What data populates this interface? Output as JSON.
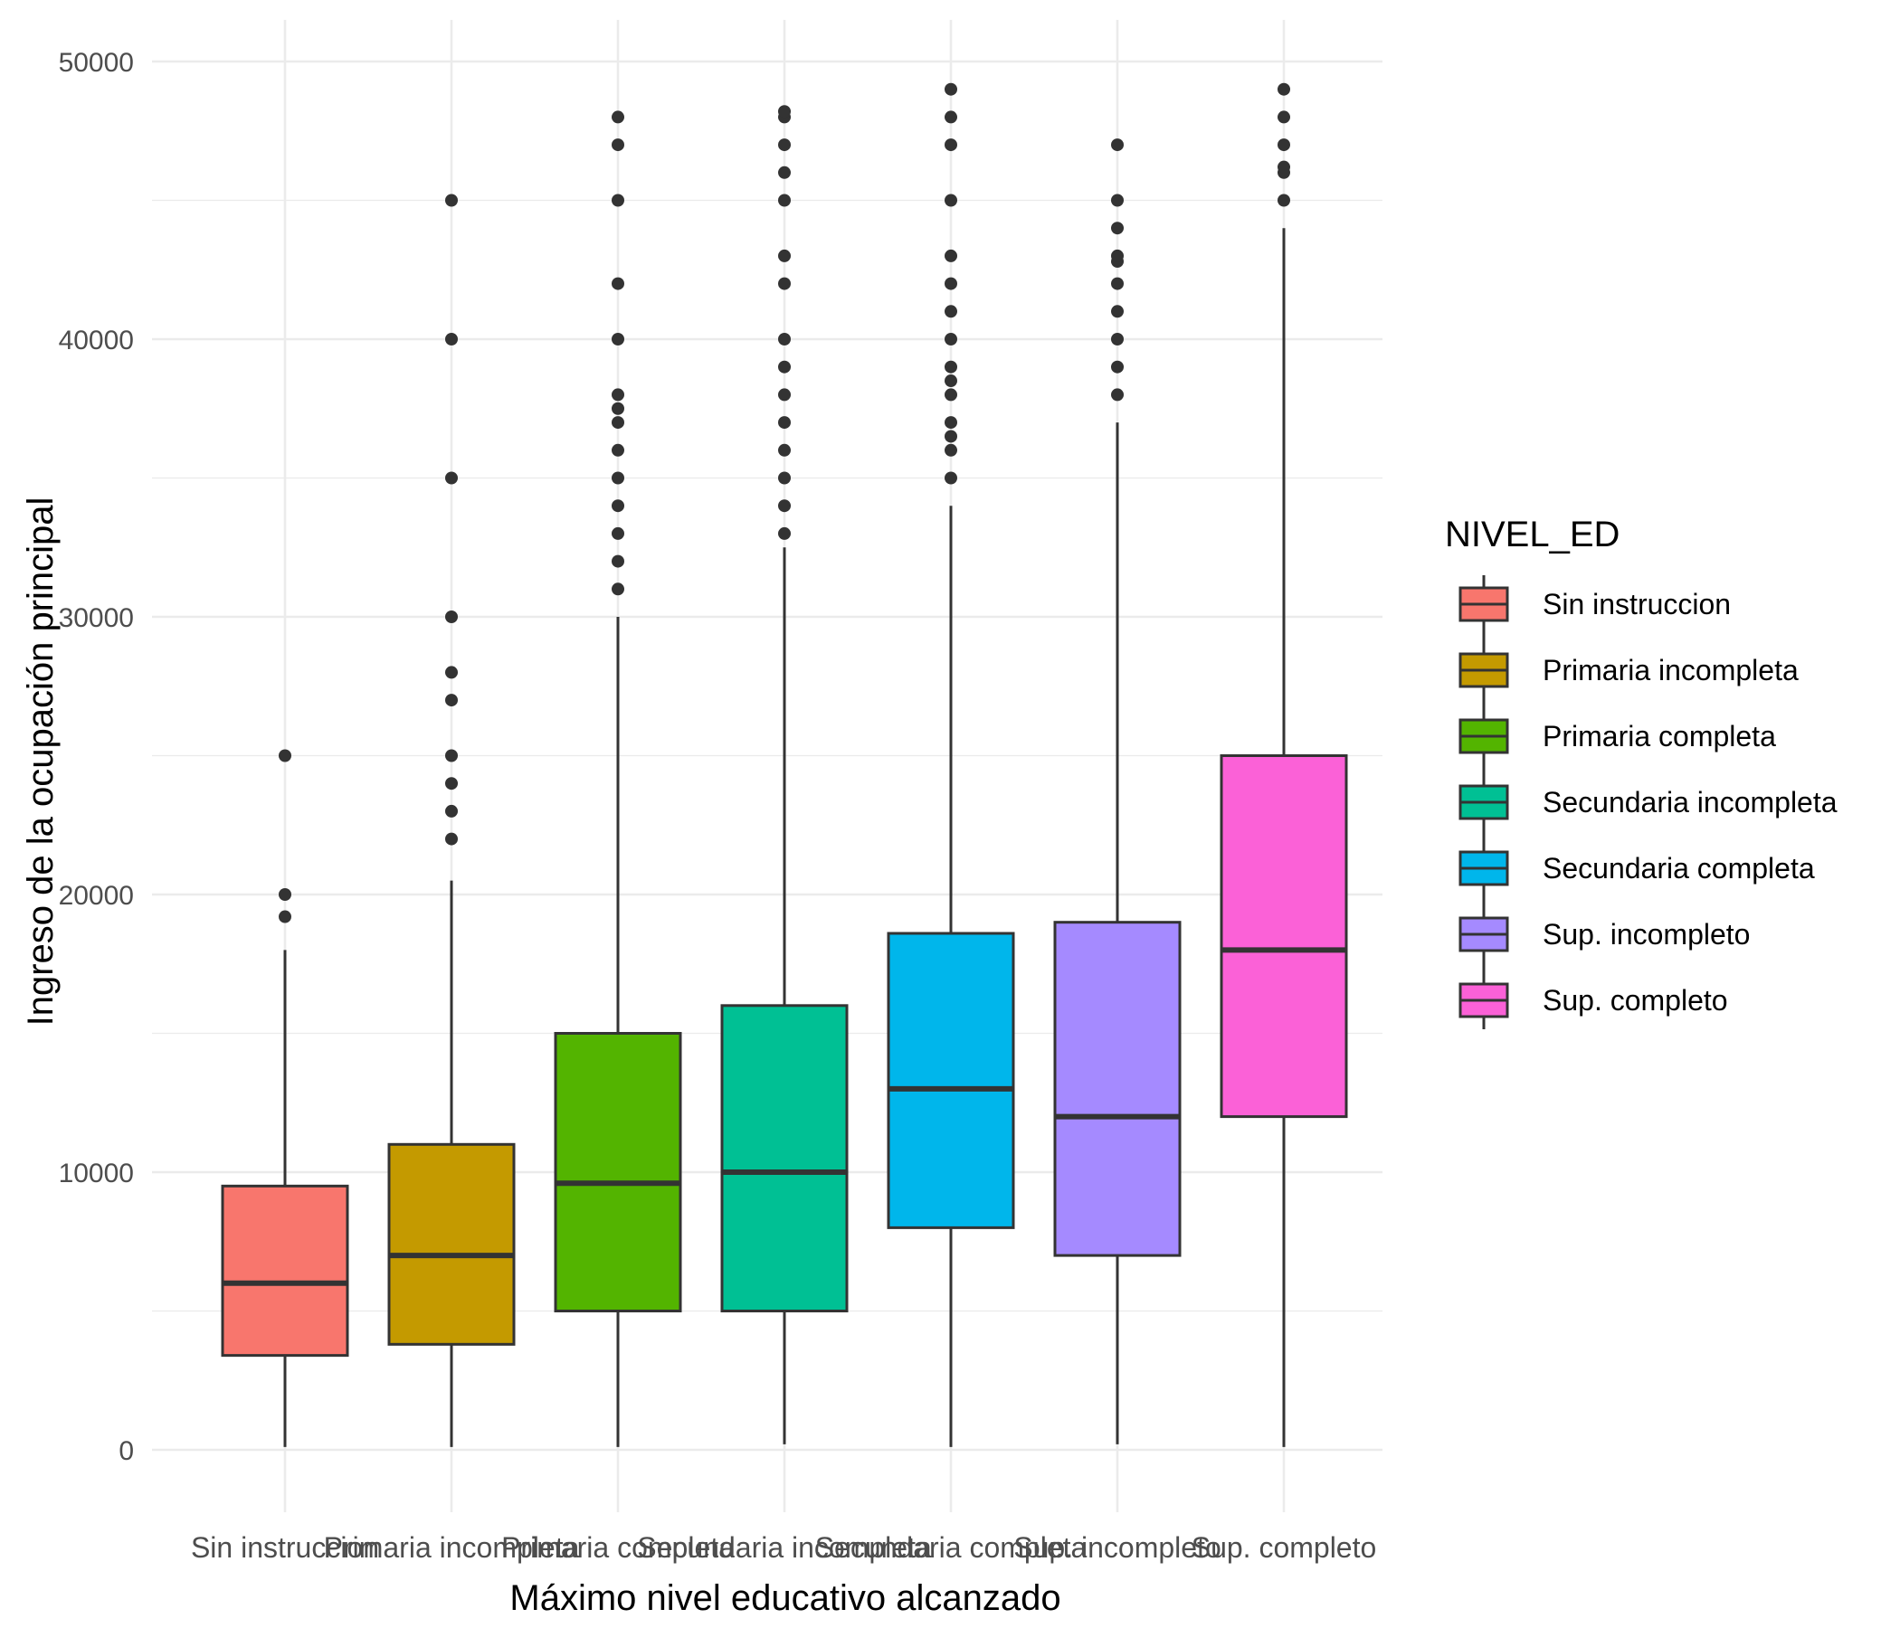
{
  "chart_data": {
    "type": "box",
    "xlabel": "Máximo nivel educativo alcanzado",
    "ylabel": "Ingreso de la ocupación principal",
    "ylim": [
      -2300,
      51300
    ],
    "yticks": [
      0,
      10000,
      20000,
      30000,
      40000,
      50000
    ],
    "grid": true,
    "legend": {
      "title": "NIVEL_ED",
      "position": "right"
    },
    "categories": [
      "Sin instruccion",
      "Primaria incompleta",
      "Primaria completa",
      "Secundaria incompleta",
      "Secundaria completa",
      "Sup. incompleto",
      "Sup. completo"
    ],
    "series": [
      {
        "name": "Sin instruccion",
        "color": "#F8766D",
        "whisker_low": 100,
        "q1": 3400,
        "median": 6000,
        "q3": 9500,
        "whisker_high": 18000,
        "outliers": [
          19200,
          20000,
          25000
        ]
      },
      {
        "name": "Primaria incompleta",
        "color": "#C49A00",
        "whisker_low": 100,
        "q1": 3800,
        "median": 7000,
        "q3": 11000,
        "whisker_high": 20500,
        "outliers": [
          22000,
          23000,
          24000,
          25000,
          27000,
          28000,
          30000,
          35000,
          40000,
          45000
        ]
      },
      {
        "name": "Primaria completa",
        "color": "#53B400",
        "whisker_low": 100,
        "q1": 5000,
        "median": 9600,
        "q3": 15000,
        "whisker_high": 30000,
        "outliers": [
          31000,
          32000,
          33000,
          34000,
          35000,
          36000,
          37000,
          37500,
          38000,
          40000,
          42000,
          45000,
          47000,
          48000
        ]
      },
      {
        "name": "Secundaria incompleta",
        "color": "#00C094",
        "whisker_low": 200,
        "q1": 5000,
        "median": 10000,
        "q3": 16000,
        "whisker_high": 32500,
        "outliers": [
          33000,
          34000,
          35000,
          36000,
          37000,
          38000,
          39000,
          40000,
          42000,
          43000,
          45000,
          46000,
          47000,
          48000,
          48200
        ]
      },
      {
        "name": "Secundaria completa",
        "color": "#00B6EB",
        "whisker_low": 100,
        "q1": 8000,
        "median": 13000,
        "q3": 18600,
        "whisker_high": 34000,
        "outliers": [
          35000,
          36000,
          36500,
          37000,
          38000,
          38500,
          39000,
          40000,
          41000,
          42000,
          43000,
          45000,
          47000,
          48000,
          49000
        ]
      },
      {
        "name": "Sup. incompleto",
        "color": "#A58AFF",
        "whisker_low": 200,
        "q1": 7000,
        "median": 12000,
        "q3": 19000,
        "whisker_high": 37000,
        "outliers": [
          38000,
          39000,
          40000,
          41000,
          42000,
          42800,
          43000,
          44000,
          45000,
          47000
        ]
      },
      {
        "name": "Sup. completo",
        "color": "#FB61D7",
        "whisker_low": 100,
        "q1": 12000,
        "median": 18000,
        "q3": 25000,
        "whisker_high": 44000,
        "outliers": [
          45000,
          46000,
          46200,
          47000,
          48000,
          49000
        ]
      }
    ]
  }
}
